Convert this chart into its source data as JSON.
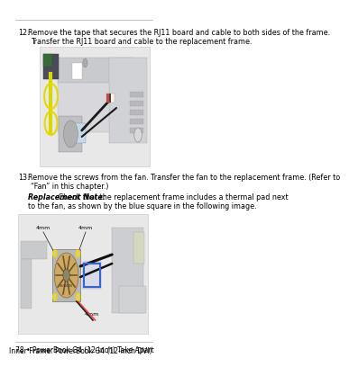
{
  "page_number": "78",
  "left_footer": "78 • PowerBook G4 (12-inch) Take Apart",
  "right_footer": "Inner Frame: PowerBook G4 (12-inch DVI)",
  "background_color": "#ffffff",
  "text_color": "#000000",
  "footer_fontsize": 5.5,
  "body_fontsize": 5.8,
  "step12_line1": "Remove the tape that secures the RJ11 board and cable to both sides of the frame.",
  "step12_line2": "Transfer the RJ11 board and cable to the replacement frame.",
  "step13_line1": "Remove the screws from the fan. Transfer the fan to the replacement frame. (Refer to",
  "step13_line2": "“Fan” in this chapter.)",
  "note_bold": "Replacement Note:",
  "note_rest": " Check that the replacement frame includes a thermal pad next",
  "note_line2": "to the fan, as shown by the blue square in the following image.",
  "yellow_circle_color": "#e8d800",
  "blue_square_color": "#3366cc",
  "screw_label": "4mm"
}
